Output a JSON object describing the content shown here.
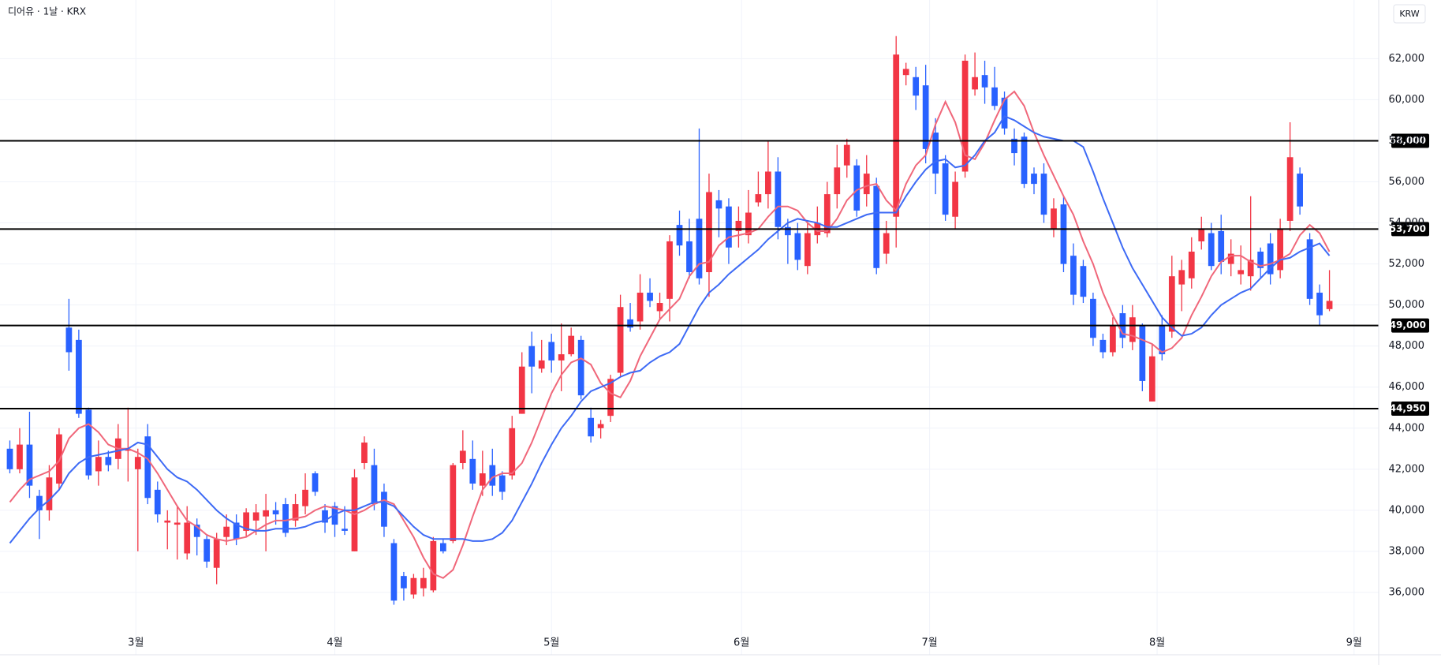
{
  "chart_data": {
    "type": "candlestick",
    "title": "디어유 · 1날 · KRX",
    "currency": "KRW",
    "up_color": "#f23645",
    "down_color": "#2962ff",
    "xlim": [
      -1,
      139
    ],
    "ylim": [
      34500,
      64500
    ],
    "xticks": [
      {
        "value": 12.8,
        "label": "3월"
      },
      {
        "value": 33,
        "label": "4월"
      },
      {
        "value": 55,
        "label": "5월"
      },
      {
        "value": 74.3,
        "label": "6월"
      },
      {
        "value": 93.4,
        "label": "7월"
      },
      {
        "value": 116.5,
        "label": "8월"
      },
      {
        "value": 136.5,
        "label": "9월"
      }
    ],
    "yticks": [
      {
        "value": 36000,
        "label": "36,000"
      },
      {
        "value": 38000,
        "label": "38,000"
      },
      {
        "value": 40000,
        "label": "40,000"
      },
      {
        "value": 42000,
        "label": "42,000"
      },
      {
        "value": 44000,
        "label": "44,000"
      },
      {
        "value": 46000,
        "label": "46,000"
      },
      {
        "value": 48000,
        "label": "48,000"
      },
      {
        "value": 50000,
        "label": "50,000"
      },
      {
        "value": 52000,
        "label": "52,000"
      },
      {
        "value": 54000,
        "label": "54,000"
      },
      {
        "value": 56000,
        "label": "56,000"
      },
      {
        "value": 58000,
        "label": "58,000"
      },
      {
        "value": 60000,
        "label": "60,000"
      },
      {
        "value": 62000,
        "label": "62,000"
      }
    ],
    "levels": [
      {
        "value": 58000,
        "label": "58,000"
      },
      {
        "value": 53700,
        "label": "53,700"
      },
      {
        "value": 49000,
        "label": "49,000"
      },
      {
        "value": 44950,
        "label": "44,950"
      }
    ],
    "grid": true,
    "open": [
      43000,
      42000,
      43200,
      40700,
      40000,
      41300,
      48900,
      48300,
      44900,
      41900,
      42600,
      42500,
      42900,
      42000,
      43600,
      41000,
      39400,
      39300,
      37900,
      39300,
      38600,
      37200,
      38700,
      39400,
      39000,
      39500,
      39700,
      40000,
      40300,
      39500,
      40200,
      41800,
      40000,
      40200,
      39100,
      38000,
      42300,
      42200,
      40900,
      38400,
      36800,
      35900,
      36200,
      36100,
      38400,
      38500,
      42300,
      42500,
      41200,
      42200,
      41700,
      41700,
      44700,
      48000,
      46900,
      48200,
      47300,
      47600,
      48300,
      44500,
      44000,
      44600,
      46700,
      49300,
      49200,
      50600,
      49700,
      50300,
      53900,
      53100,
      54200,
      51600,
      55100,
      54800,
      53600,
      53400,
      55000,
      55400,
      56500,
      53800,
      53500,
      51900,
      53400,
      53500,
      55400,
      56800,
      56800,
      55400,
      55800,
      52500,
      54300,
      61200,
      61100,
      60700,
      58400,
      56900,
      54300,
      56500,
      60500,
      61200,
      60600,
      60100,
      58100,
      58200,
      56400,
      56400,
      53700,
      54900,
      52400,
      51900,
      50300,
      48300,
      47700,
      49600,
      48200,
      49000,
      45300,
      49000,
      48700,
      51000,
      51300,
      53100,
      53500,
      53600,
      52000,
      51500,
      51400,
      52600,
      53000,
      51700,
      54100,
      56400,
      53200,
      50600,
      49800
    ],
    "high": [
      43400,
      44000,
      44800,
      41000,
      42200,
      44000,
      50300,
      48800,
      45000,
      43400,
      42900,
      44200,
      45000,
      43000,
      44200,
      41400,
      40000,
      40200,
      40200,
      39600,
      38800,
      38900,
      39800,
      39800,
      40100,
      40300,
      40800,
      40400,
      40600,
      40800,
      41800,
      41900,
      40300,
      40400,
      40200,
      42000,
      43600,
      43000,
      41300,
      38600,
      37000,
      36900,
      37200,
      38700,
      38600,
      42300,
      43900,
      43400,
      42900,
      43000,
      41900,
      44600,
      47700,
      48700,
      48300,
      48600,
      49100,
      48900,
      48500,
      45000,
      44400,
      46600,
      50500,
      50100,
      51500,
      51300,
      50600,
      53400,
      54600,
      54200,
      58600,
      56400,
      55600,
      55200,
      54800,
      55600,
      56500,
      58000,
      57200,
      54200,
      54000,
      54100,
      54800,
      56000,
      57800,
      58100,
      57100,
      57300,
      56200,
      54100,
      63100,
      61800,
      61600,
      61700,
      59100,
      57300,
      56500,
      62200,
      62300,
      61900,
      61600,
      60400,
      58600,
      58400,
      56700,
      56900,
      55200,
      55300,
      53000,
      52200,
      50600,
      48600,
      49400,
      50000,
      50000,
      49100,
      48100,
      49500,
      52400,
      52200,
      53300,
      54300,
      54000,
      54400,
      53200,
      52900,
      55300,
      52800,
      53500,
      54200,
      58900,
      56700,
      53500,
      51000,
      51700
    ],
    "low": [
      41800,
      41800,
      40600,
      38600,
      39500,
      41000,
      46800,
      44500,
      41500,
      41200,
      41900,
      42000,
      41400,
      38000,
      40300,
      39400,
      38100,
      37600,
      37600,
      37800,
      37200,
      36400,
      38300,
      38300,
      38700,
      38800,
      38000,
      39300,
      38700,
      39200,
      39800,
      40700,
      38900,
      38700,
      38800,
      38000,
      42000,
      40000,
      38700,
      35400,
      35600,
      35700,
      35800,
      36000,
      37900,
      38400,
      42000,
      41000,
      40700,
      40700,
      40500,
      41500,
      44700,
      45700,
      46700,
      46700,
      45800,
      47500,
      45400,
      43300,
      43500,
      44300,
      46500,
      48700,
      48800,
      49900,
      49300,
      49200,
      52400,
      51300,
      51000,
      50400,
      53300,
      52000,
      52800,
      53000,
      54800,
      54700,
      53200,
      52000,
      51700,
      51500,
      53000,
      53300,
      54700,
      56200,
      54300,
      54800,
      51500,
      52000,
      52800,
      60700,
      59500,
      56900,
      55400,
      54100,
      53700,
      56200,
      60200,
      59800,
      59500,
      58300,
      56800,
      55700,
      55400,
      54000,
      53300,
      51600,
      50000,
      50100,
      48000,
      47400,
      47500,
      47900,
      47800,
      45800,
      45300,
      47300,
      48400,
      49700,
      50800,
      52700,
      51700,
      51500,
      51400,
      51000,
      50700,
      51300,
      51000,
      51300,
      53600,
      54400,
      50000,
      49000,
      49700
    ],
    "close": [
      42000,
      43200,
      41200,
      40000,
      41600,
      43700,
      47700,
      44700,
      41700,
      42600,
      42200,
      43500,
      43000,
      42600,
      40600,
      39800,
      39500,
      39400,
      39400,
      38700,
      37500,
      38600,
      39200,
      38600,
      39900,
      39900,
      40000,
      39800,
      38900,
      40300,
      41000,
      40900,
      39400,
      39300,
      39000,
      41600,
      43300,
      40300,
      39200,
      35600,
      36200,
      36700,
      36700,
      38500,
      38000,
      42200,
      42900,
      41300,
      41800,
      41200,
      40900,
      44000,
      47000,
      47000,
      47300,
      47300,
      47600,
      48500,
      45600,
      43600,
      44200,
      46400,
      49900,
      48900,
      50600,
      50200,
      50100,
      53100,
      52900,
      51600,
      51300,
      55500,
      54700,
      52800,
      54100,
      54500,
      55400,
      56500,
      53800,
      53400,
      52200,
      53500,
      54000,
      55400,
      56700,
      57800,
      54600,
      56400,
      51800,
      53500,
      62200,
      61500,
      60200,
      57600,
      56400,
      54400,
      56000,
      61900,
      61100,
      60600,
      59700,
      58600,
      57400,
      55900,
      55900,
      54400,
      54700,
      52000,
      50500,
      50400,
      48400,
      47700,
      49000,
      48400,
      49400,
      46300,
      47500,
      47600,
      51400,
      51700,
      52600,
      53700,
      51900,
      52100,
      52500,
      51700,
      52200,
      51800,
      51500,
      53700,
      57200,
      54800,
      50300,
      49500,
      50200
    ],
    "series": [
      {
        "color": "#f0677a",
        "values": [
          40400,
          41000,
          41500,
          41700,
          41900,
          42400,
          43500,
          44000,
          44200,
          43800,
          43200,
          43000,
          43000,
          42800,
          42500,
          41800,
          41000,
          40200,
          39500,
          39200,
          38800,
          38600,
          38500,
          38600,
          38700,
          39000,
          39300,
          39500,
          39500,
          39600,
          39700,
          40000,
          40200,
          40100,
          40000,
          39800,
          40000,
          40300,
          40500,
          40300,
          39500,
          38700,
          37700,
          36900,
          36700,
          37100,
          38300,
          39700,
          41000,
          41600,
          41800,
          41800,
          42300,
          43300,
          44500,
          45700,
          46600,
          47200,
          47400,
          47100,
          46200,
          45700,
          45500,
          46300,
          47500,
          48400,
          49300,
          49800,
          50300,
          51400,
          52000,
          52100,
          52900,
          53300,
          53400,
          53500,
          53700,
          54300,
          54800,
          54800,
          54600,
          54000,
          53600,
          53600,
          54200,
          55100,
          55600,
          55800,
          55900,
          55100,
          54600,
          55900,
          56800,
          57300,
          58800,
          59900,
          58900,
          57300,
          57100,
          57900,
          59000,
          60000,
          60400,
          59700,
          58400,
          57300,
          56300,
          55300,
          54400,
          53100,
          52000,
          50600,
          49500,
          48600,
          48500,
          48300,
          48100,
          47700,
          47900,
          48400,
          49500,
          50400,
          51400,
          52100,
          52400,
          52400,
          52100,
          51900,
          52000,
          52200,
          52500,
          53400,
          53900,
          53500,
          52600
        ]
      },
      {
        "color": "#3d6af5",
        "values": [
          38400,
          39000,
          39600,
          40100,
          40500,
          41000,
          41800,
          42300,
          42600,
          42700,
          42800,
          42900,
          43000,
          43300,
          43200,
          42600,
          42000,
          41600,
          41400,
          41000,
          40500,
          40000,
          39600,
          39300,
          39100,
          39000,
          39000,
          39100,
          39100,
          39100,
          39200,
          39400,
          39500,
          39800,
          40000,
          40000,
          40200,
          40400,
          40400,
          40200,
          39700,
          39200,
          38800,
          38600,
          38600,
          38600,
          38600,
          38500,
          38500,
          38600,
          38900,
          39500,
          40400,
          41300,
          42300,
          43200,
          44000,
          44600,
          45300,
          45800,
          46000,
          46200,
          46500,
          46700,
          46800,
          47200,
          47500,
          47700,
          48100,
          49000,
          49900,
          50600,
          51000,
          51500,
          51900,
          52300,
          52700,
          53200,
          53600,
          54000,
          54200,
          54100,
          54000,
          53800,
          53800,
          54000,
          54200,
          54400,
          54500,
          54500,
          54500,
          55300,
          56000,
          56600,
          57000,
          57100,
          56700,
          56800,
          57300,
          58000,
          58400,
          59200,
          59000,
          58700,
          58400,
          58200,
          58100,
          58000,
          58000,
          57700,
          56500,
          55200,
          54000,
          52800,
          51800,
          51000,
          50200,
          49400,
          48900,
          48500,
          48600,
          48900,
          49500,
          50000,
          50300,
          50600,
          50800,
          51300,
          51800,
          52200,
          52300,
          52600,
          52800,
          53000,
          52400
        ]
      }
    ]
  }
}
